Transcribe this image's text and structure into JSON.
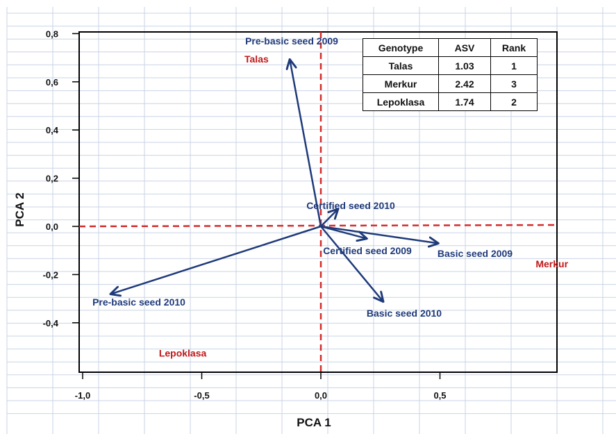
{
  "chart_data": {
    "type": "scatter",
    "xlabel": "PCA 1",
    "ylabel": "PCA  2",
    "xlim": [
      -1.0,
      1.0
    ],
    "ylim": [
      -0.6,
      0.8
    ],
    "x_ticks": [
      "-1,0",
      "-0,5",
      "0,0",
      "0,5"
    ],
    "y_ticks": [
      "0,8",
      "0,6",
      "0,4",
      "0,2",
      "0,0",
      "-0,2",
      "-0,4"
    ],
    "grid": true,
    "reference_lines": {
      "x": 0.0,
      "y": 0.0,
      "style": "dashed",
      "color": "#d42a2a"
    },
    "vectors": [
      {
        "label": "Pre-basic seed 2009",
        "x": -0.13,
        "y": 0.69
      },
      {
        "label": "Certified seed 2010",
        "x": 0.07,
        "y": 0.07
      },
      {
        "label": "Certified seed 2009",
        "x": 0.19,
        "y": -0.05
      },
      {
        "label": "Basic seed 2009",
        "x": 0.49,
        "y": -0.07
      },
      {
        "label": "Basic seed 2010",
        "x": 0.26,
        "y": -0.31
      },
      {
        "label": "Pre-basic seed 2010",
        "x": -0.88,
        "y": -0.28
      }
    ],
    "genotypes": [
      {
        "label": "Talas",
        "x": -0.27,
        "y": 0.68
      },
      {
        "label": "Merkur",
        "x": 0.97,
        "y": -0.17
      },
      {
        "label": "Lepoklasa",
        "x": -0.58,
        "y": -0.54
      }
    ],
    "vector_color": "#1f3a7a",
    "genotype_color": "#c01818"
  },
  "table": {
    "headers": [
      "Genotype",
      "ASV",
      "Rank"
    ],
    "rows": [
      [
        "Talas",
        "1.03",
        "1"
      ],
      [
        "Merkur",
        "2.42",
        "3"
      ],
      [
        "Lepoklasa",
        "1.74",
        "2"
      ]
    ]
  }
}
